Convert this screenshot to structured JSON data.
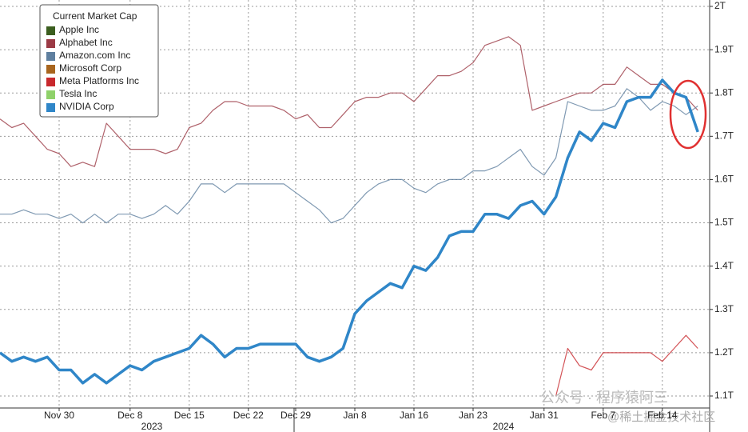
{
  "chart_data": {
    "type": "line",
    "legend_title": "Current Market Cap",
    "categories": [
      null,
      null,
      null,
      null,
      null,
      "Nov 30",
      null,
      null,
      null,
      null,
      null,
      "Dec 8",
      null,
      null,
      null,
      null,
      "Dec 15",
      null,
      null,
      null,
      null,
      "Dec 22",
      null,
      null,
      null,
      "Dec 29",
      null,
      null,
      null,
      null,
      "Jan 8",
      null,
      null,
      null,
      null,
      "Jan 16",
      null,
      null,
      null,
      null,
      "Jan 23",
      null,
      null,
      null,
      null,
      null,
      "Jan 31",
      null,
      null,
      null,
      null,
      "Feb 7",
      null,
      null,
      null,
      null,
      "Feb 14",
      null,
      null,
      null
    ],
    "years": [
      "2023",
      "2024"
    ],
    "ylim": [
      1.1,
      2.0
    ],
    "yticks": [
      {
        "value": 1.1,
        "label": "1.1T"
      },
      {
        "value": 1.2,
        "label": "1.2T"
      },
      {
        "value": 1.3,
        "label": "1.3T"
      },
      {
        "value": 1.4,
        "label": "1.4T"
      },
      {
        "value": 1.5,
        "label": "1.5T"
      },
      {
        "value": 1.6,
        "label": "1.6T"
      },
      {
        "value": 1.7,
        "label": "1.7T"
      },
      {
        "value": 1.8,
        "label": "1.8T"
      },
      {
        "value": 1.9,
        "label": "1.9T"
      },
      {
        "value": 2.0,
        "label": "2T"
      }
    ],
    "grid": true,
    "legend": "top-left",
    "series": [
      {
        "name": "Apple Inc",
        "color": "#3b5e1f"
      },
      {
        "name": "Alphabet Inc",
        "color": "#9b3a45",
        "values": [
          1.74,
          1.72,
          1.73,
          1.7,
          1.67,
          1.66,
          1.63,
          1.64,
          1.63,
          1.73,
          1.7,
          1.67,
          1.67,
          1.67,
          1.66,
          1.67,
          1.72,
          1.73,
          1.76,
          1.78,
          1.78,
          1.77,
          1.77,
          1.77,
          1.76,
          1.74,
          1.75,
          1.72,
          1.72,
          1.75,
          1.78,
          1.79,
          1.79,
          1.8,
          1.8,
          1.78,
          1.81,
          1.84,
          1.84,
          1.85,
          1.87,
          1.91,
          1.92,
          1.93,
          1.91,
          1.76,
          1.77,
          1.78,
          1.79,
          1.8,
          1.8,
          1.82,
          1.82,
          1.86,
          1.84,
          1.82,
          1.82,
          1.8,
          1.79,
          1.76
        ]
      },
      {
        "name": "Amazon.com Inc",
        "color": "#5f7f9f",
        "values": [
          1.52,
          1.52,
          1.53,
          1.52,
          1.52,
          1.51,
          1.52,
          1.5,
          1.52,
          1.5,
          1.52,
          1.52,
          1.51,
          1.52,
          1.54,
          1.52,
          1.55,
          1.59,
          1.59,
          1.57,
          1.59,
          1.59,
          1.59,
          1.59,
          1.59,
          1.57,
          1.55,
          1.53,
          1.5,
          1.51,
          1.54,
          1.57,
          1.59,
          1.6,
          1.6,
          1.58,
          1.57,
          1.59,
          1.6,
          1.6,
          1.62,
          1.62,
          1.63,
          1.65,
          1.67,
          1.63,
          1.61,
          1.65,
          1.78,
          1.77,
          1.76,
          1.76,
          1.77,
          1.81,
          1.79,
          1.76,
          1.78,
          1.77,
          1.75,
          1.77
        ]
      },
      {
        "name": "Microsoft Corp",
        "color": "#a8651e"
      },
      {
        "name": "Meta Platforms Inc",
        "color": "#c8282d",
        "values": [
          null,
          null,
          null,
          null,
          null,
          null,
          null,
          null,
          null,
          null,
          null,
          null,
          null,
          null,
          null,
          null,
          null,
          null,
          null,
          null,
          null,
          null,
          null,
          null,
          null,
          null,
          null,
          null,
          null,
          null,
          null,
          null,
          null,
          null,
          null,
          null,
          null,
          null,
          null,
          null,
          null,
          null,
          null,
          null,
          null,
          null,
          null,
          1.1,
          1.21,
          1.17,
          1.16,
          1.2,
          1.2,
          1.2,
          1.2,
          1.2,
          1.18,
          1.21,
          1.24,
          1.21
        ]
      },
      {
        "name": "Tesla Inc",
        "color": "#8fd16a"
      },
      {
        "name": "NVIDIA Corp",
        "color": "#2f86c8",
        "values": [
          1.2,
          1.18,
          1.19,
          1.18,
          1.19,
          1.16,
          1.16,
          1.13,
          1.15,
          1.13,
          1.15,
          1.17,
          1.16,
          1.18,
          1.19,
          1.2,
          1.21,
          1.24,
          1.22,
          1.19,
          1.21,
          1.21,
          1.22,
          1.22,
          1.22,
          1.22,
          1.19,
          1.18,
          1.19,
          1.21,
          1.29,
          1.32,
          1.34,
          1.36,
          1.35,
          1.4,
          1.39,
          1.42,
          1.47,
          1.48,
          1.48,
          1.52,
          1.52,
          1.51,
          1.54,
          1.55,
          1.52,
          1.56,
          1.65,
          1.71,
          1.69,
          1.73,
          1.72,
          1.78,
          1.79,
          1.79,
          1.83,
          1.8,
          1.79,
          1.71
        ]
      }
    ],
    "highlight_series": "NVIDIA Corp",
    "watermark": [
      "公众号 · 程序猿阿三",
      "@稀土掘金技术社区"
    ]
  }
}
